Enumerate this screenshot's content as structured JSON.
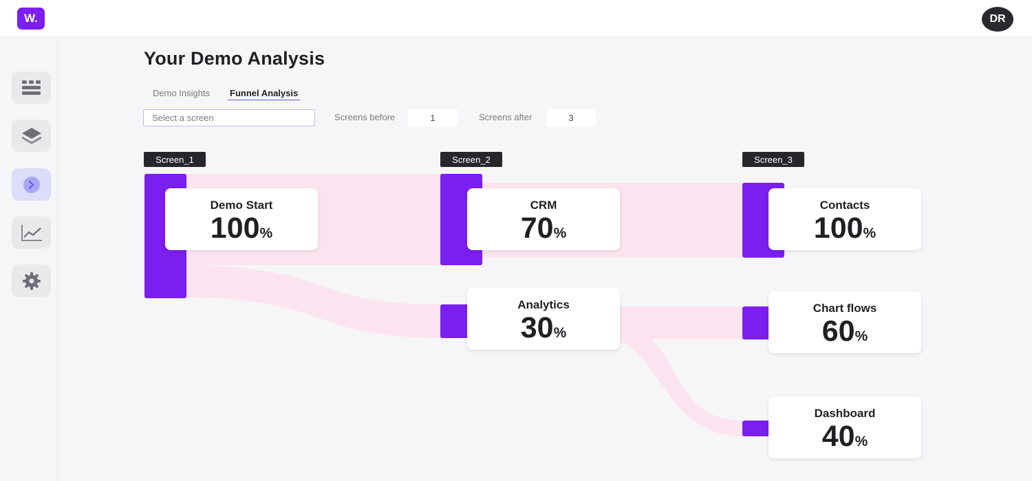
{
  "app": {
    "logo_text": "W.",
    "user_initials": "DR"
  },
  "sidebar": {
    "items": [
      {
        "icon": "list-icon"
      },
      {
        "icon": "layers-icon"
      },
      {
        "icon": "play-icon",
        "active": true
      },
      {
        "icon": "line-chart-icon"
      },
      {
        "icon": "gear-icon"
      }
    ]
  },
  "page": {
    "title": "Your Demo Analysis"
  },
  "tabs": [
    {
      "label": "Demo Insights",
      "active": false
    },
    {
      "label": "Funnel Analysis",
      "active": true
    }
  ],
  "controls": {
    "screen_select_placeholder": "Select a screen",
    "screens_before_label": "Screens before",
    "screens_before_value": "1",
    "screens_after_label": "Screens after",
    "screens_after_value": "3"
  },
  "funnel": {
    "columns": [
      "Screen_1",
      "Screen_2",
      "Screen_3"
    ],
    "nodes": [
      {
        "id": "demo-start",
        "name": "Demo Start",
        "value": "100",
        "unit": "%"
      },
      {
        "id": "crm",
        "name": "CRM",
        "value": "70",
        "unit": "%"
      },
      {
        "id": "analytics",
        "name": "Analytics",
        "value": "30",
        "unit": "%"
      },
      {
        "id": "contacts",
        "name": "Contacts",
        "value": "100",
        "unit": "%"
      },
      {
        "id": "chart-flows",
        "name": "Chart flows",
        "value": "60",
        "unit": "%"
      },
      {
        "id": "dashboard",
        "name": "Dashboard",
        "value": "40",
        "unit": "%"
      }
    ],
    "colors": {
      "node": "#7b1ef0",
      "flow": "#fbe4ef"
    }
  }
}
